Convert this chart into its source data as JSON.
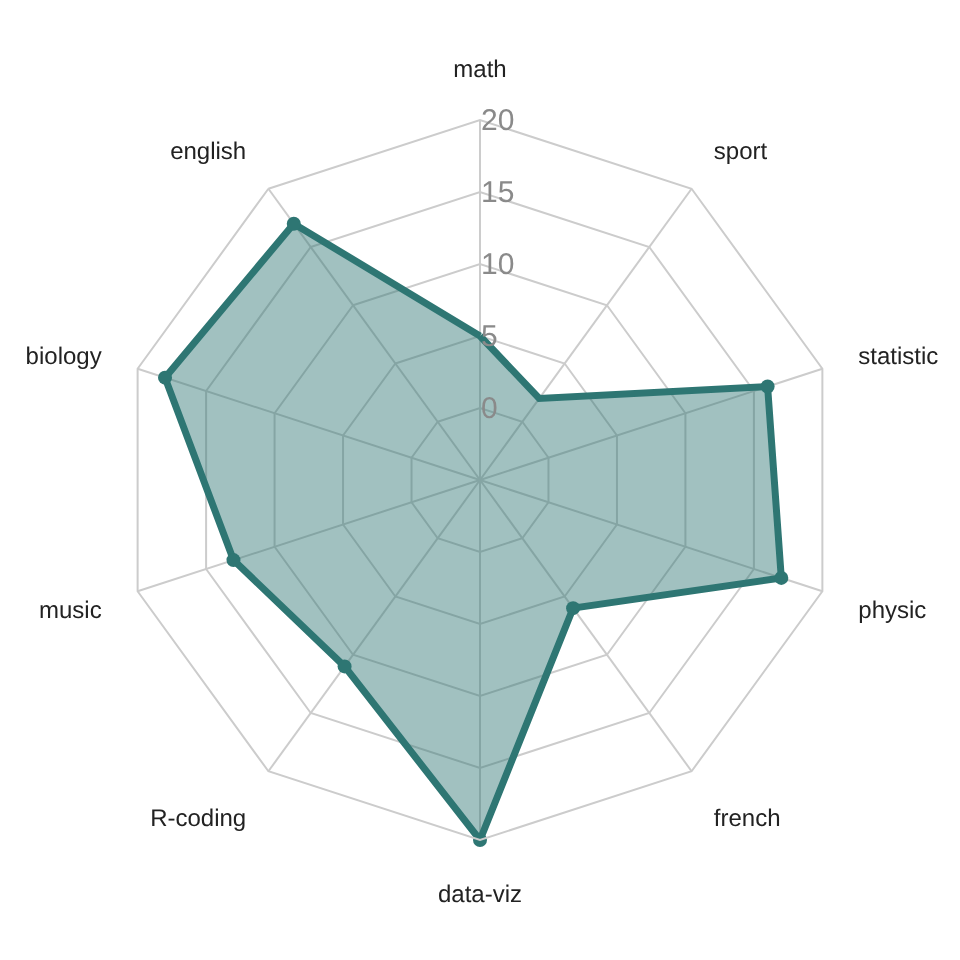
{
  "chart_data": {
    "type": "radar",
    "categories": [
      "math",
      "sport",
      "statistic",
      "physic",
      "french",
      "data-viz",
      "R-coding",
      "music",
      "biology",
      "english"
    ],
    "series": [
      {
        "color": "#2e7673",
        "values": [
          5,
          2,
          16,
          17,
          6,
          20,
          11,
          13,
          18,
          17
        ]
      }
    ],
    "ylim": [
      -5,
      20
    ],
    "yticks": [
      0,
      5,
      10,
      15,
      20
    ],
    "grid": true,
    "marker": "circle",
    "line_style": "solid"
  }
}
